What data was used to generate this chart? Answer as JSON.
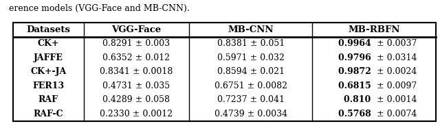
{
  "title_text": "erence models (VGG-Face and MB-CNN).",
  "headers": [
    "Datasets",
    "VGG-Face",
    "MB-CNN",
    "MB-RBFN"
  ],
  "rows": [
    [
      "CK+",
      "0.8291 ± 0.003",
      "0.8381 ± 0.051",
      "0.9964 ± 0.0037"
    ],
    [
      "JAFFE",
      "0.6352 ± 0.012",
      "0.5971 ± 0.032",
      "0.9796 ± 0.0314"
    ],
    [
      "CK+-JA",
      "0.8341 ± 0.0018",
      "0.8594 ± 0.021",
      "0.9872 ± 0.0024"
    ],
    [
      "FER13",
      "0.4731 ± 0.035",
      "0.6751 ± 0.0082",
      "0.6815 ± 0.0097"
    ],
    [
      "RAF",
      "0.4289 ± 0.058",
      "0.7237 ± 0.041",
      "0.810 ± 0.0014"
    ],
    [
      "RAF-C",
      "0.2330 ± 0.0012",
      "0.4739 ± 0.0034",
      "0.5768 ± 0.0074"
    ]
  ],
  "bold_last_col": true,
  "bold_first_col": true,
  "bold_headers": true,
  "bg_color": "white",
  "header_bg": "white",
  "figsize": [
    6.4,
    1.84
  ],
  "dpi": 100
}
